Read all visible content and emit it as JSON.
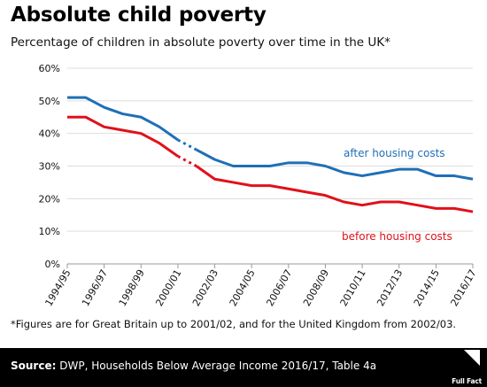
{
  "header": {
    "title": "Absolute child poverty",
    "subtitle": "Percentage of children in absolute poverty over time in the UK*"
  },
  "footnote": "*Figures are for Great Britain up to 2001/02, and for the United Kingdom from 2002/03.",
  "footer": {
    "source_label": "Source:",
    "source_text": " DWP, Households Below Average Income 2016/17, Table 4a",
    "logo_text": "Full Fact"
  },
  "colors": {
    "after_housing": "#1f6fb7",
    "before_housing": "#e0111a",
    "axis": "#999999",
    "grid": "#dddddd"
  },
  "chart_data": {
    "type": "line",
    "title": "Absolute child poverty",
    "subtitle": "Percentage of children in absolute poverty over time in the UK*",
    "ylim": [
      0,
      60
    ],
    "yticks": [
      0,
      10,
      20,
      30,
      40,
      50,
      60
    ],
    "ytick_labels": [
      "0%",
      "10%",
      "20%",
      "30%",
      "40%",
      "50%",
      "60%"
    ],
    "x": [
      "1994/95",
      "1995/96",
      "1996/97",
      "1997/98",
      "1998/99",
      "1999/00",
      "2000/01",
      "2001/02",
      "2002/03",
      "2003/04",
      "2004/05",
      "2005/06",
      "2006/07",
      "2007/08",
      "2008/09",
      "2009/10",
      "2010/11",
      "2011/12",
      "2012/13",
      "2013/14",
      "2014/15",
      "2015/16",
      "2016/17"
    ],
    "xtick_labels": [
      "1994/95",
      "1996/97",
      "1998/99",
      "2000/01",
      "2002/03",
      "2004/05",
      "2006/07",
      "2008/09",
      "2010/11",
      "2012/13",
      "2014/15",
      "2016/17"
    ],
    "break_after": "2000/01",
    "series": [
      {
        "name": "after housing costs",
        "color": "#1f6fb7",
        "values": [
          51,
          51,
          48,
          46,
          45,
          42,
          38,
          35,
          32,
          30,
          30,
          30,
          31,
          31,
          30,
          28,
          27,
          28,
          29,
          29,
          27,
          27,
          26
        ]
      },
      {
        "name": "before housing costs",
        "color": "#e0111a",
        "values": [
          45,
          45,
          42,
          41,
          40,
          37,
          33,
          30,
          26,
          25,
          24,
          24,
          23,
          22,
          21,
          19,
          18,
          19,
          19,
          18,
          17,
          17,
          16
        ]
      }
    ]
  }
}
